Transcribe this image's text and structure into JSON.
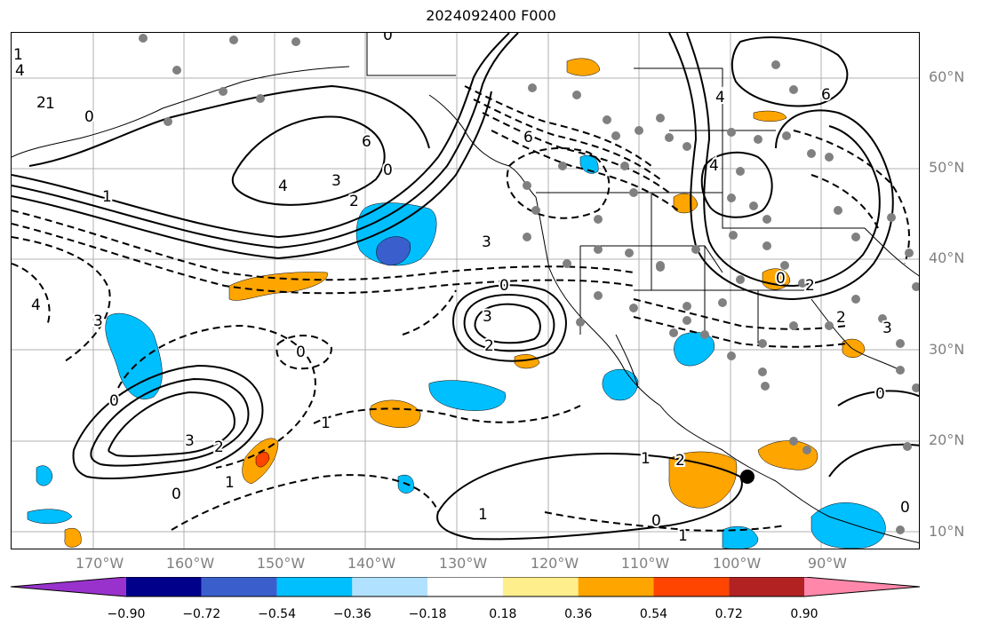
{
  "title": "2024092400 F000",
  "lat_labels": [
    "60°N",
    "50°N",
    "40°N",
    "30°N",
    "20°N",
    "10°N"
  ],
  "lon_labels": [
    "170°W",
    "160°W",
    "150°W",
    "140°W",
    "130°W",
    "120°W",
    "110°W",
    "100°W",
    "90°W"
  ],
  "colorbar": {
    "colors": [
      "#9932cc",
      "#00008b",
      "#3a5fcd",
      "#00bfff",
      "#b0e2ff",
      "#ffffff",
      "#ffee8c",
      "#ffa500",
      "#ff4500",
      "#b22222",
      "#ff88aa"
    ],
    "tick_labels": [
      "−0.90",
      "−0.72",
      "−0.54",
      "−0.36",
      "−0.18",
      "0.18",
      "0.36",
      "0.54",
      "0.72",
      "0.90"
    ]
  },
  "contour_labels": [
    "0",
    "1",
    "2",
    "3",
    "4",
    "6"
  ],
  "legend_colors": {
    "solid_contour": "#000000",
    "dashed_contour": "#000000",
    "dot": "#808080",
    "grid": "#b0b0b0"
  }
}
